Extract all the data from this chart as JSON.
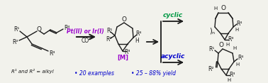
{
  "bg_color": "#f2f2ec",
  "bond_color": "#1a1a1a",
  "reagent_color": "#9900cc",
  "cyclic_color": "#009944",
  "acyclic_color": "#0000cc",
  "bullet_color": "#0000cc",
  "metal_color": "#9900cc",
  "reagent_text": "Pt(II) or Ir(I)",
  "co_text": "CO",
  "cyclic_label": "cyclic",
  "acyclic_label": "acyclic",
  "r1r2_text": "R¹ and R² = alkyl",
  "bullet1": "• 20 examples",
  "bullet2": "• 25 – 88% yield",
  "metal_label": "[M]",
  "figsize": [
    3.78,
    1.17
  ],
  "dpi": 100
}
